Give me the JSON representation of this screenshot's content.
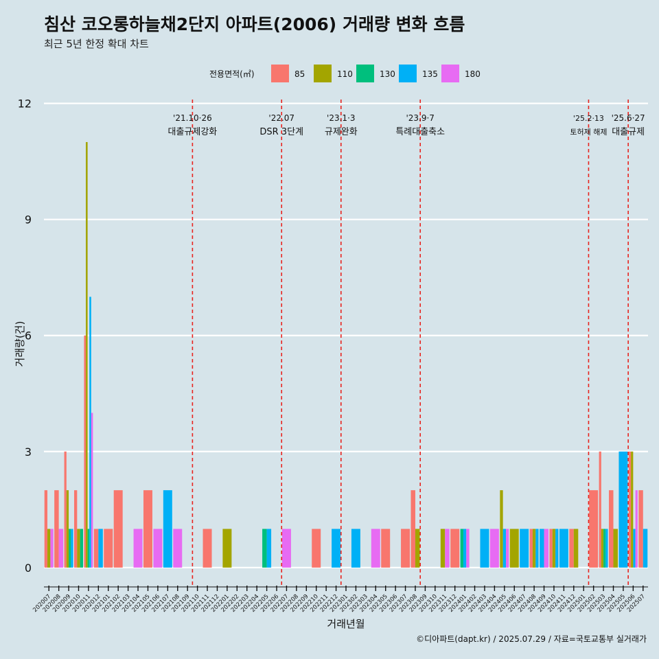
{
  "chart_data": {
    "type": "bar",
    "title": "침산 코오롱하늘채2단지 아파트(2006) 거래량 변화 흐름",
    "subtitle": "최근 5년 한정 확대 차트",
    "xlabel": "거래년월",
    "ylabel": "거래량(건)",
    "caption": "©디아파트(dapt.kr) / 2025.07.29 / 자료=국토교통부 실거래가",
    "legend_title": "전용면적(㎡)",
    "legend_position": "top",
    "ylim": [
      -0.5,
      12.1
    ],
    "yticks": [
      0,
      3,
      6,
      9,
      12
    ],
    "grid": true,
    "categories": [
      "202007",
      "202008",
      "202009",
      "202010",
      "202011",
      "202012",
      "202101",
      "202102",
      "202103",
      "202104",
      "202105",
      "202106",
      "202107",
      "202108",
      "202109",
      "202110",
      "202111",
      "202112",
      "202201",
      "202202",
      "202203",
      "202204",
      "202205",
      "202206",
      "202207",
      "202208",
      "202209",
      "202210",
      "202211",
      "202212",
      "202301",
      "202302",
      "202303",
      "202304",
      "202305",
      "202306",
      "202307",
      "202308",
      "202309",
      "202310",
      "202311",
      "202312",
      "202401",
      "202402",
      "202403",
      "202404",
      "202405",
      "202406",
      "202407",
      "202408",
      "202409",
      "202410",
      "202411",
      "202412",
      "202501",
      "202502",
      "202503",
      "202504",
      "202505",
      "202506",
      "202507"
    ],
    "series": [
      {
        "name": "85",
        "color": "#f8766d",
        "values": [
          2,
          2,
          3,
          2,
          6,
          1,
          1,
          2,
          0,
          0,
          2,
          0,
          0,
          0,
          0,
          0,
          1,
          0,
          0,
          0,
          0,
          0,
          0,
          0,
          0,
          0,
          0,
          1,
          0,
          0,
          0,
          0,
          0,
          0,
          1,
          0,
          1,
          2,
          0,
          0,
          0,
          1,
          0,
          0,
          0,
          0,
          0,
          0,
          0,
          1,
          0,
          1,
          0,
          1,
          0,
          2,
          3,
          2,
          0,
          3,
          2
        ]
      },
      {
        "name": "110",
        "color": "#a3a500",
        "values": [
          1,
          0,
          2,
          1,
          11,
          0,
          0,
          0,
          0,
          0,
          0,
          0,
          0,
          0,
          0,
          0,
          0,
          0,
          1,
          0,
          0,
          0,
          0,
          0,
          0,
          0,
          0,
          0,
          0,
          0,
          0,
          0,
          0,
          0,
          0,
          0,
          0,
          1,
          0,
          0,
          1,
          0,
          0,
          0,
          0,
          0,
          2,
          1,
          0,
          1,
          0,
          1,
          0,
          1,
          0,
          0,
          1,
          1,
          0,
          3,
          0
        ]
      },
      {
        "name": "130",
        "color": "#00bf7d",
        "values": [
          0,
          0,
          1,
          1,
          1,
          0,
          0,
          0,
          0,
          0,
          0,
          0,
          0,
          0,
          0,
          0,
          0,
          0,
          0,
          0,
          0,
          0,
          1,
          0,
          0,
          0,
          0,
          0,
          0,
          0,
          0,
          0,
          0,
          0,
          0,
          0,
          0,
          0,
          0,
          0,
          0,
          0,
          1,
          0,
          0,
          0,
          0,
          0,
          0,
          0,
          0,
          0,
          0,
          0,
          0,
          0,
          1,
          0,
          0,
          0,
          0
        ]
      },
      {
        "name": "135",
        "color": "#00b0f6",
        "values": [
          0,
          0,
          1,
          0,
          7,
          1,
          0,
          0,
          0,
          0,
          0,
          0,
          2,
          0,
          0,
          0,
          0,
          0,
          0,
          0,
          0,
          0,
          1,
          0,
          0,
          0,
          0,
          0,
          0,
          1,
          0,
          1,
          0,
          0,
          0,
          0,
          0,
          0,
          0,
          0,
          0,
          0,
          1,
          0,
          1,
          0,
          1,
          0,
          1,
          1,
          1,
          1,
          1,
          0,
          0,
          0,
          1,
          0,
          3,
          1,
          1
        ]
      },
      {
        "name": "180",
        "color": "#e76bf3",
        "values": [
          1,
          1,
          0,
          0,
          4,
          0,
          0,
          0,
          0,
          1,
          0,
          1,
          0,
          1,
          0,
          0,
          0,
          0,
          0,
          0,
          0,
          0,
          0,
          0,
          1,
          0,
          0,
          0,
          0,
          0,
          0,
          0,
          0,
          1,
          0,
          0,
          0,
          0,
          0,
          0,
          1,
          0,
          1,
          0,
          0,
          1,
          1,
          0,
          0,
          0,
          1,
          0,
          0,
          0,
          0,
          0,
          0,
          0,
          0,
          2,
          0
        ]
      }
    ],
    "events": [
      {
        "date": "202110",
        "line1": "'21.10·26",
        "line2": "대출규제강화"
      },
      {
        "date": "202207",
        "line1": "'22.07",
        "line2": "DSR 3단계"
      },
      {
        "date": "202301",
        "line1": "'23.1·3",
        "line2": "규제완화"
      },
      {
        "date": "202309",
        "line1": "'23.9·7",
        "line2": "특례대출축소"
      },
      {
        "date": "202502",
        "line1": "'25.2·13",
        "line2": "토허제 해제"
      },
      {
        "date": "202506",
        "line1": "'25.6·27",
        "line2": "대출규제"
      }
    ],
    "event_color": "#e8231e"
  }
}
